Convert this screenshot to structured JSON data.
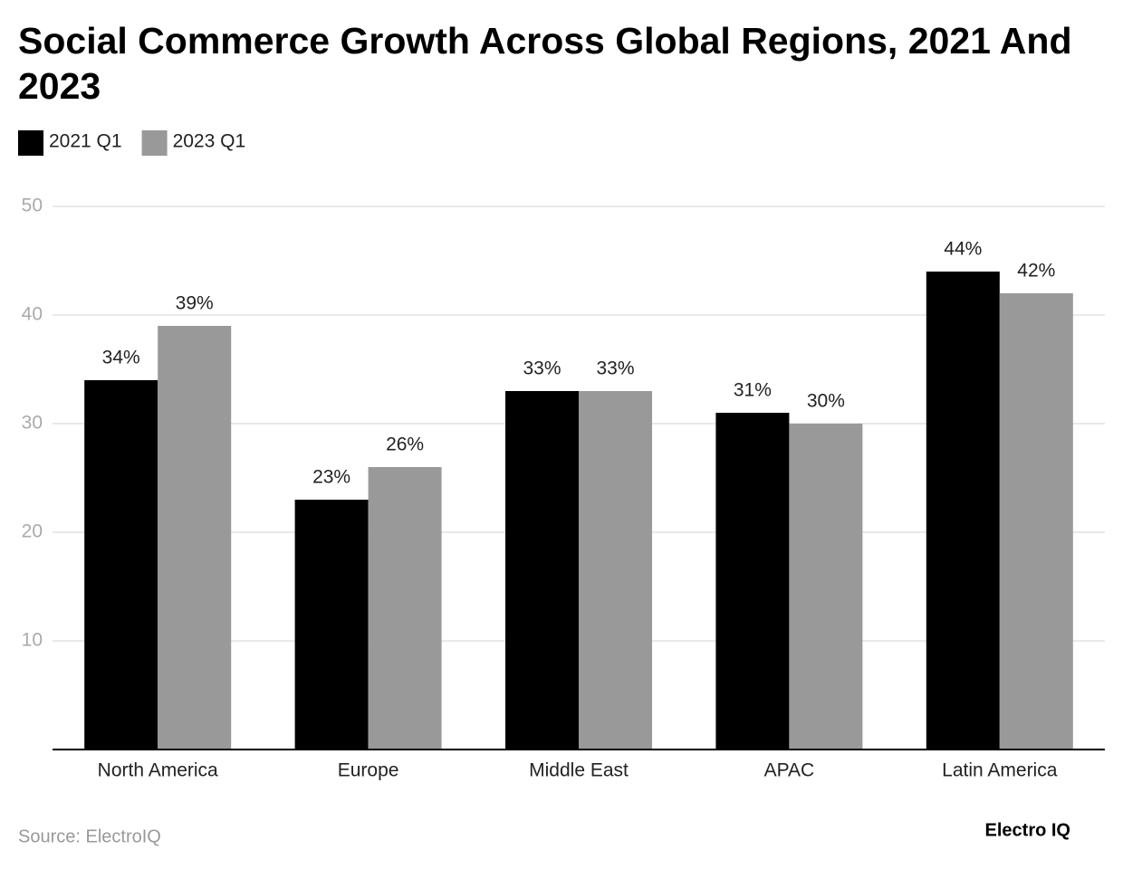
{
  "chart_data": {
    "type": "bar",
    "title": "Social Commerce Growth Across Global Regions, 2021 And 2023",
    "categories": [
      "North America",
      "Europe",
      "Middle East",
      "APAC",
      "Latin America"
    ],
    "series": [
      {
        "name": "2021 Q1",
        "color": "#000000",
        "values": [
          34,
          23,
          33,
          31,
          44
        ],
        "value_labels": [
          "34%",
          "23%",
          "33%",
          "31%",
          "44%"
        ]
      },
      {
        "name": "2023 Q1",
        "color": "#999999",
        "values": [
          39,
          26,
          33,
          30,
          42
        ],
        "value_labels": [
          "39%",
          "26%",
          "33%",
          "30%",
          "42%"
        ]
      }
    ],
    "ylim": [
      0,
      50
    ],
    "yticks": [
      10,
      20,
      30,
      40,
      50
    ],
    "grid": true,
    "legend": "top-left",
    "source": "Source: ElectroIQ",
    "brand": "Electro IQ"
  }
}
